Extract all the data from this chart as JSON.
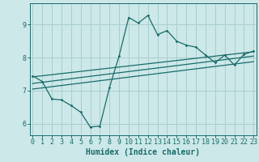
{
  "xlabel": "Humidex (Indice chaleur)",
  "bg_color": "#cce8e8",
  "line_color": "#1a6b6b",
  "grid_color": "#aacece",
  "x_data": [
    0,
    1,
    2,
    3,
    4,
    5,
    6,
    7,
    8,
    9,
    10,
    11,
    12,
    13,
    14,
    15,
    16,
    17,
    18,
    19,
    20,
    21,
    22,
    23
  ],
  "y_main": [
    7.45,
    7.28,
    6.75,
    6.72,
    6.55,
    6.35,
    5.9,
    5.93,
    7.1,
    8.05,
    9.22,
    9.05,
    9.28,
    8.7,
    8.82,
    8.5,
    8.38,
    8.32,
    8.08,
    7.85,
    8.08,
    7.78,
    8.1,
    8.2
  ],
  "trend1_x": [
    0,
    23
  ],
  "trend1_y": [
    7.42,
    8.18
  ],
  "trend2_x": [
    0,
    23
  ],
  "trend2_y": [
    7.22,
    8.05
  ],
  "trend3_x": [
    0,
    23
  ],
  "trend3_y": [
    7.05,
    7.88
  ],
  "xlim": [
    -0.3,
    23.3
  ],
  "ylim": [
    5.65,
    9.65
  ],
  "xticks": [
    0,
    1,
    2,
    3,
    4,
    5,
    6,
    7,
    8,
    9,
    10,
    11,
    12,
    13,
    14,
    15,
    16,
    17,
    18,
    19,
    20,
    21,
    22,
    23
  ],
  "yticks": [
    6,
    7,
    8,
    9
  ],
  "tick_fontsize": 6,
  "xlabel_fontsize": 7
}
